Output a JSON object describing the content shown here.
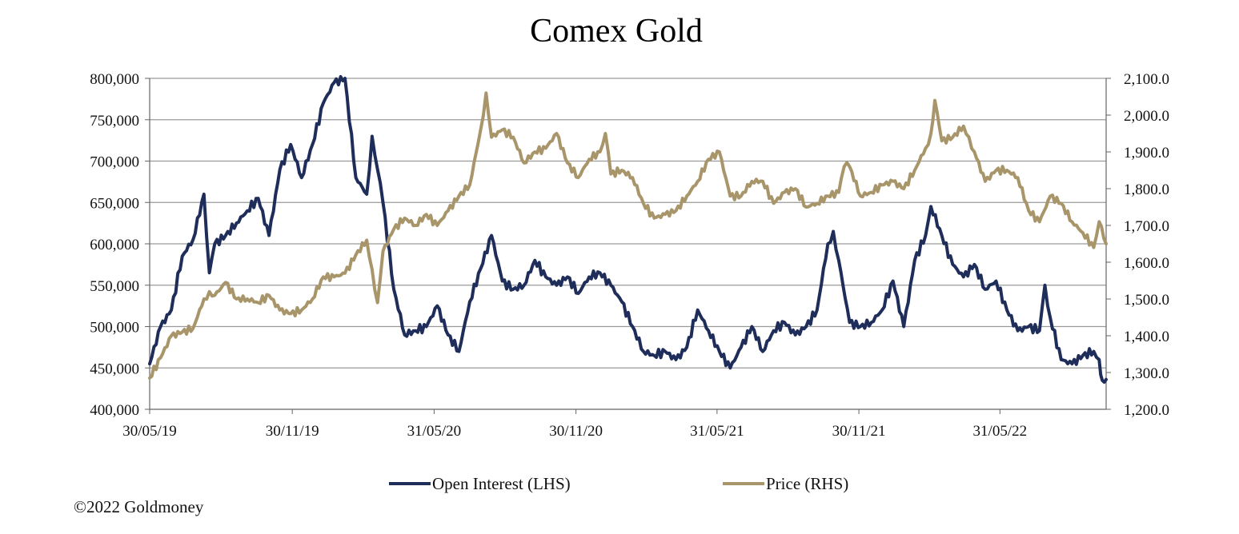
{
  "chart_data": {
    "type": "line",
    "title": "Comex Gold",
    "x_tick_labels": [
      "30/05/19",
      "30/11/19",
      "31/05/20",
      "30/11/20",
      "31/05/21",
      "30/11/21",
      "31/05/22"
    ],
    "x_range": [
      "30/05/19",
      "15/10/22"
    ],
    "y_left": {
      "ylim": [
        400000,
        800000
      ],
      "ticks": [
        400000,
        450000,
        500000,
        550000,
        600000,
        650000,
        700000,
        750000,
        800000
      ],
      "tick_labels": [
        "400,000",
        "450,000",
        "500,000",
        "550,000",
        "600,000",
        "650,000",
        "700,000",
        "750,000",
        "800,000"
      ]
    },
    "y_right": {
      "ylim": [
        1200,
        2100
      ],
      "ticks": [
        1200,
        1300,
        1400,
        1500,
        1600,
        1700,
        1800,
        1900,
        2000,
        2100
      ],
      "tick_labels": [
        "1,200.0",
        "1,300.0",
        "1,400.0",
        "1,500.0",
        "1,600.0",
        "1,700.0",
        "1,800.0",
        "1,900.0",
        "2,000.0",
        "2,100.0"
      ]
    },
    "grid": "horizontal",
    "legend_position": "bottom",
    "series": [
      {
        "name": "Open Interest (LHS)",
        "axis": "left",
        "color": "#1f2d5a",
        "points": [
          [
            "30/05/19",
            455000
          ],
          [
            "13/06/19",
            500000
          ],
          [
            "27/06/19",
            520000
          ],
          [
            "11/07/19",
            585000
          ],
          [
            "25/07/19",
            605000
          ],
          [
            "08/08/19",
            660000
          ],
          [
            "15/08/19",
            565000
          ],
          [
            "22/08/19",
            600000
          ],
          [
            "05/09/19",
            610000
          ],
          [
            "19/09/19",
            625000
          ],
          [
            "03/10/19",
            640000
          ],
          [
            "17/10/19",
            655000
          ],
          [
            "31/10/19",
            610000
          ],
          [
            "14/11/19",
            690000
          ],
          [
            "28/11/19",
            720000
          ],
          [
            "12/12/19",
            680000
          ],
          [
            "26/12/19",
            720000
          ],
          [
            "09/01/20",
            770000
          ],
          [
            "23/01/20",
            795000
          ],
          [
            "06/02/20",
            800000
          ],
          [
            "20/02/20",
            680000
          ],
          [
            "05/03/20",
            660000
          ],
          [
            "12/03/20",
            730000
          ],
          [
            "19/03/20",
            690000
          ],
          [
            "26/03/20",
            650000
          ],
          [
            "09/04/20",
            545000
          ],
          [
            "23/04/20",
            490000
          ],
          [
            "07/05/20",
            495000
          ],
          [
            "21/05/20",
            500000
          ],
          [
            "04/06/20",
            525000
          ],
          [
            "18/06/20",
            490000
          ],
          [
            "02/07/20",
            470000
          ],
          [
            "16/07/20",
            530000
          ],
          [
            "30/07/20",
            570000
          ],
          [
            "13/08/20",
            610000
          ],
          [
            "27/08/20",
            555000
          ],
          [
            "10/09/20",
            545000
          ],
          [
            "24/09/20",
            550000
          ],
          [
            "08/10/20",
            580000
          ],
          [
            "22/10/20",
            560000
          ],
          [
            "05/11/20",
            550000
          ],
          [
            "19/11/20",
            560000
          ],
          [
            "03/12/20",
            540000
          ],
          [
            "17/12/20",
            560000
          ],
          [
            "31/12/20",
            565000
          ],
          [
            "14/01/21",
            550000
          ],
          [
            "28/01/21",
            530000
          ],
          [
            "11/02/21",
            500000
          ],
          [
            "25/02/21",
            470000
          ],
          [
            "11/03/21",
            465000
          ],
          [
            "25/03/21",
            470000
          ],
          [
            "08/04/21",
            460000
          ],
          [
            "22/04/21",
            475000
          ],
          [
            "06/05/21",
            520000
          ],
          [
            "20/05/21",
            495000
          ],
          [
            "03/06/21",
            470000
          ],
          [
            "17/06/21",
            450000
          ],
          [
            "01/07/21",
            475000
          ],
          [
            "15/07/21",
            500000
          ],
          [
            "29/07/21",
            470000
          ],
          [
            "12/08/21",
            495000
          ],
          [
            "26/08/21",
            505000
          ],
          [
            "09/09/21",
            490000
          ],
          [
            "23/09/21",
            500000
          ],
          [
            "07/10/21",
            520000
          ],
          [
            "21/10/21",
            600000
          ],
          [
            "28/10/21",
            615000
          ],
          [
            "04/11/21",
            580000
          ],
          [
            "18/11/21",
            505000
          ],
          [
            "02/12/21",
            500000
          ],
          [
            "16/12/21",
            505000
          ],
          [
            "30/12/21",
            520000
          ],
          [
            "13/01/22",
            555000
          ],
          [
            "27/01/22",
            500000
          ],
          [
            "10/02/22",
            580000
          ],
          [
            "24/02/22",
            610000
          ],
          [
            "03/03/22",
            645000
          ],
          [
            "17/03/22",
            610000
          ],
          [
            "31/03/22",
            575000
          ],
          [
            "14/04/22",
            560000
          ],
          [
            "28/04/22",
            575000
          ],
          [
            "12/05/22",
            545000
          ],
          [
            "26/05/22",
            555000
          ],
          [
            "09/06/22",
            520000
          ],
          [
            "23/06/22",
            495000
          ],
          [
            "07/07/22",
            500000
          ],
          [
            "21/07/22",
            495000
          ],
          [
            "28/07/22",
            550000
          ],
          [
            "04/08/22",
            510000
          ],
          [
            "18/08/22",
            460000
          ],
          [
            "01/09/22",
            455000
          ],
          [
            "15/09/22",
            465000
          ],
          [
            "29/09/22",
            470000
          ],
          [
            "06/10/22",
            460000
          ],
          [
            "10/10/22",
            435000
          ],
          [
            "15/10/22",
            436000
          ]
        ]
      },
      {
        "name": "Price (RHS)",
        "axis": "right",
        "color": "#a8956a",
        "points": [
          [
            "30/05/19",
            1285
          ],
          [
            "13/06/19",
            1340
          ],
          [
            "27/06/19",
            1400
          ],
          [
            "11/07/19",
            1410
          ],
          [
            "25/07/19",
            1420
          ],
          [
            "08/08/19",
            1500
          ],
          [
            "15/08/19",
            1520
          ],
          [
            "22/08/19",
            1510
          ],
          [
            "05/09/19",
            1545
          ],
          [
            "19/09/19",
            1500
          ],
          [
            "03/10/19",
            1500
          ],
          [
            "17/10/19",
            1490
          ],
          [
            "31/10/19",
            1510
          ],
          [
            "14/11/19",
            1470
          ],
          [
            "28/11/19",
            1460
          ],
          [
            "12/12/19",
            1470
          ],
          [
            "26/12/19",
            1500
          ],
          [
            "09/01/20",
            1560
          ],
          [
            "23/01/20",
            1560
          ],
          [
            "06/02/20",
            1570
          ],
          [
            "20/02/20",
            1620
          ],
          [
            "05/03/20",
            1660
          ],
          [
            "12/03/20",
            1580
          ],
          [
            "19/03/20",
            1490
          ],
          [
            "26/03/20",
            1630
          ],
          [
            "09/04/20",
            1690
          ],
          [
            "23/04/20",
            1720
          ],
          [
            "07/05/20",
            1700
          ],
          [
            "21/05/20",
            1730
          ],
          [
            "04/06/20",
            1700
          ],
          [
            "18/06/20",
            1740
          ],
          [
            "02/07/20",
            1780
          ],
          [
            "16/07/20",
            1810
          ],
          [
            "30/07/20",
            1960
          ],
          [
            "06/08/20",
            2060
          ],
          [
            "13/08/20",
            1940
          ],
          [
            "27/08/20",
            1960
          ],
          [
            "10/09/20",
            1940
          ],
          [
            "24/09/20",
            1870
          ],
          [
            "08/10/20",
            1900
          ],
          [
            "22/10/20",
            1910
          ],
          [
            "05/11/20",
            1950
          ],
          [
            "19/11/20",
            1870
          ],
          [
            "03/12/20",
            1830
          ],
          [
            "17/12/20",
            1880
          ],
          [
            "31/12/20",
            1900
          ],
          [
            "07/01/21",
            1950
          ],
          [
            "14/01/21",
            1840
          ],
          [
            "28/01/21",
            1850
          ],
          [
            "11/02/21",
            1830
          ],
          [
            "25/02/21",
            1760
          ],
          [
            "11/03/21",
            1720
          ],
          [
            "25/03/21",
            1730
          ],
          [
            "08/04/21",
            1740
          ],
          [
            "22/04/21",
            1780
          ],
          [
            "06/05/21",
            1820
          ],
          [
            "20/05/21",
            1880
          ],
          [
            "03/06/21",
            1900
          ],
          [
            "17/06/21",
            1780
          ],
          [
            "01/07/21",
            1780
          ],
          [
            "15/07/21",
            1820
          ],
          [
            "29/07/21",
            1820
          ],
          [
            "12/08/21",
            1760
          ],
          [
            "26/08/21",
            1790
          ],
          [
            "09/09/21",
            1800
          ],
          [
            "23/09/21",
            1750
          ],
          [
            "07/10/21",
            1760
          ],
          [
            "21/10/21",
            1780
          ],
          [
            "04/11/21",
            1790
          ],
          [
            "11/11/21",
            1860
          ],
          [
            "18/11/21",
            1860
          ],
          [
            "02/12/21",
            1780
          ],
          [
            "16/12/21",
            1790
          ],
          [
            "30/12/21",
            1810
          ],
          [
            "13/01/22",
            1820
          ],
          [
            "27/01/22",
            1800
          ],
          [
            "10/02/22",
            1850
          ],
          [
            "24/02/22",
            1910
          ],
          [
            "03/03/22",
            1950
          ],
          [
            "08/03/22",
            2040
          ],
          [
            "17/03/22",
            1930
          ],
          [
            "31/03/22",
            1940
          ],
          [
            "14/04/22",
            1970
          ],
          [
            "21/04/22",
            1940
          ],
          [
            "28/04/22",
            1900
          ],
          [
            "12/05/22",
            1820
          ],
          [
            "26/05/22",
            1850
          ],
          [
            "09/06/22",
            1850
          ],
          [
            "23/06/22",
            1830
          ],
          [
            "07/07/22",
            1740
          ],
          [
            "21/07/22",
            1710
          ],
          [
            "04/08/22",
            1780
          ],
          [
            "18/08/22",
            1760
          ],
          [
            "01/09/22",
            1710
          ],
          [
            "15/09/22",
            1680
          ],
          [
            "29/09/22",
            1640
          ],
          [
            "06/10/22",
            1710
          ],
          [
            "15/10/22",
            1650
          ]
        ]
      }
    ]
  },
  "copyright": "©2022 Goldmoney"
}
